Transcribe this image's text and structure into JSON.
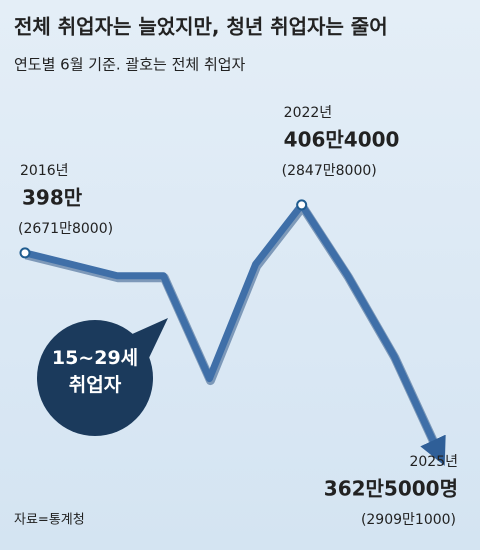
{
  "chart_data": {
    "type": "line",
    "title": "전체 취업자는 늘었지만, 청년 취업자는 줄어",
    "subtitle": "연도별 6월 기준. 괄호는 전체 취업자",
    "source": "자료=통계청",
    "categories": [
      "2016년",
      null,
      null,
      null,
      null,
      null,
      "2022년",
      null,
      null,
      "2025년"
    ],
    "series": [
      {
        "name": "15~29세 취업자",
        "color": "#3f6fa8",
        "values": [
          3980000,
          3960000,
          3940000,
          3940000,
          3760000,
          3960000,
          4064000,
          3940000,
          3800000,
          3625000
        ],
        "value_labels": [
          "398만",
          null,
          null,
          null,
          null,
          null,
          "406만4000",
          null,
          null,
          "362만5000명"
        ]
      }
    ],
    "annotations": [
      "(2671만8000)",
      null,
      null,
      null,
      null,
      null,
      "(2847만8000)",
      null,
      null,
      "(2909만1000)"
    ],
    "ylim": [
      3600000,
      4160000
    ]
  }
}
